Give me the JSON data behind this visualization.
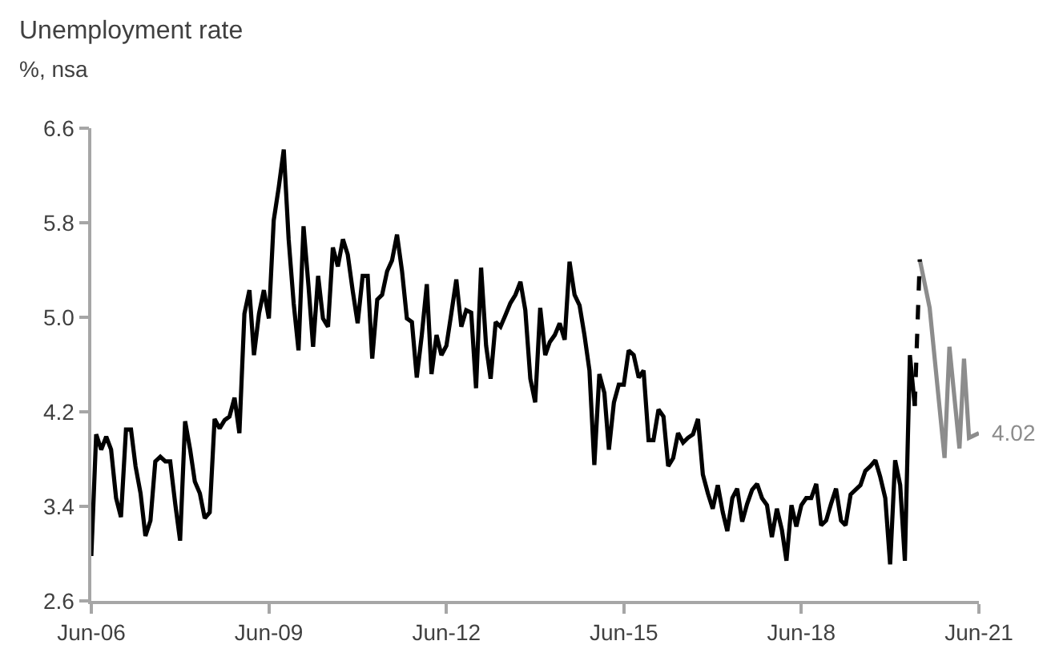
{
  "chart_data": {
    "type": "line",
    "title": "Unemployment rate",
    "subtitle": "%, nsa",
    "xlim": [
      "2006-06",
      "2021-06"
    ],
    "xticks": [
      {
        "value": "2006-06",
        "label": "Jun-06"
      },
      {
        "value": "2009-06",
        "label": "Jun-09"
      },
      {
        "value": "2012-06",
        "label": "Jun-12"
      },
      {
        "value": "2015-06",
        "label": "Jun-15"
      },
      {
        "value": "2018-06",
        "label": "Jun-18"
      },
      {
        "value": "2021-06",
        "label": "Jun-21"
      }
    ],
    "ylim": [
      2.6,
      6.6
    ],
    "yticks": [
      2.6,
      3.4,
      4.2,
      {
        "value": 5.0,
        "label": "5.0"
      },
      5.8,
      6.6
    ],
    "grid": false,
    "marker": "none",
    "annotations": [
      {
        "text": "4.02",
        "x": "2021-06",
        "y": 4.02
      }
    ],
    "series": [
      {
        "color": "#000000",
        "line_style": "solid",
        "x": [
          "2006-06",
          "2006-07",
          "2006-08",
          "2006-09",
          "2006-10",
          "2006-11",
          "2006-12",
          "2007-01",
          "2007-02",
          "2007-03",
          "2007-04",
          "2007-05",
          "2007-06",
          "2007-07",
          "2007-08",
          "2007-09",
          "2007-10",
          "2007-11",
          "2007-12",
          "2008-01",
          "2008-02",
          "2008-03",
          "2008-04",
          "2008-05",
          "2008-06",
          "2008-07",
          "2008-08",
          "2008-09",
          "2008-10",
          "2008-11",
          "2008-12",
          "2009-01",
          "2009-02",
          "2009-03",
          "2009-04",
          "2009-05",
          "2009-06",
          "2009-07",
          "2009-08",
          "2009-09",
          "2009-10",
          "2009-11",
          "2009-12",
          "2010-01",
          "2010-02",
          "2010-03",
          "2010-04",
          "2010-05",
          "2010-06",
          "2010-07",
          "2010-08",
          "2010-09",
          "2010-10",
          "2010-11",
          "2010-12",
          "2011-01",
          "2011-02",
          "2011-03",
          "2011-04",
          "2011-05",
          "2011-06",
          "2011-07",
          "2011-08",
          "2011-09",
          "2011-10",
          "2011-11",
          "2011-12",
          "2012-01",
          "2012-02",
          "2012-03",
          "2012-04",
          "2012-05",
          "2012-06",
          "2012-07",
          "2012-08",
          "2012-09",
          "2012-10",
          "2012-11",
          "2012-12",
          "2013-01",
          "2013-02",
          "2013-03",
          "2013-04",
          "2013-05",
          "2013-06",
          "2013-07",
          "2013-08",
          "2013-09",
          "2013-10",
          "2013-11",
          "2013-12",
          "2014-01",
          "2014-02",
          "2014-03",
          "2014-04",
          "2014-05",
          "2014-06",
          "2014-07",
          "2014-08",
          "2014-09",
          "2014-10",
          "2014-11",
          "2014-12",
          "2015-01",
          "2015-02",
          "2015-03",
          "2015-04",
          "2015-05",
          "2015-06",
          "2015-07",
          "2015-08",
          "2015-09",
          "2015-10",
          "2015-11",
          "2015-12",
          "2016-01",
          "2016-02",
          "2016-03",
          "2016-04",
          "2016-05",
          "2016-06",
          "2016-07",
          "2016-08",
          "2016-09",
          "2016-10",
          "2016-11",
          "2016-12",
          "2017-01",
          "2017-02",
          "2017-03",
          "2017-04",
          "2017-05",
          "2017-06",
          "2017-07",
          "2017-08",
          "2017-09",
          "2017-10",
          "2017-11",
          "2017-12",
          "2018-01",
          "2018-02",
          "2018-03",
          "2018-04",
          "2018-05",
          "2018-06",
          "2018-07",
          "2018-08",
          "2018-09",
          "2018-10",
          "2018-11",
          "2018-12",
          "2019-01",
          "2019-02",
          "2019-03",
          "2019-04",
          "2019-05",
          "2019-06",
          "2019-07",
          "2019-08",
          "2019-09",
          "2019-10",
          "2019-11",
          "2019-12",
          "2020-01",
          "2020-02",
          "2020-03",
          "2020-04",
          "2020-05"
        ],
        "values": [
          2.98,
          4.01,
          3.88,
          3.99,
          3.88,
          3.47,
          3.31,
          4.05,
          4.05,
          3.74,
          3.51,
          3.15,
          3.28,
          3.78,
          3.82,
          3.78,
          3.78,
          3.42,
          3.11,
          4.12,
          3.88,
          3.61,
          3.51,
          3.3,
          3.35,
          4.14,
          4.06,
          4.13,
          4.16,
          4.32,
          4.02,
          5.03,
          5.23,
          4.68,
          5.03,
          5.23,
          4.99,
          5.82,
          6.1,
          6.42,
          5.66,
          5.12,
          4.72,
          5.77,
          5.26,
          4.75,
          5.35,
          4.99,
          4.92,
          5.59,
          5.43,
          5.66,
          5.53,
          5.22,
          4.95,
          5.35,
          5.35,
          4.65,
          5.15,
          5.19,
          5.39,
          5.48,
          5.7,
          5.39,
          4.99,
          4.96,
          4.49,
          4.85,
          5.28,
          4.52,
          4.85,
          4.68,
          4.76,
          5.03,
          5.32,
          4.92,
          5.06,
          5.04,
          4.4,
          5.42,
          4.76,
          4.48,
          4.96,
          4.92,
          5.02,
          5.12,
          5.19,
          5.3,
          5.06,
          4.48,
          4.28,
          5.08,
          4.68,
          4.79,
          4.85,
          4.95,
          4.81,
          5.47,
          5.19,
          5.1,
          4.85,
          4.55,
          3.75,
          4.52,
          4.36,
          3.88,
          4.28,
          4.43,
          4.43,
          4.72,
          4.68,
          4.49,
          4.55,
          3.96,
          3.96,
          4.22,
          4.16,
          3.74,
          3.81,
          4.02,
          3.94,
          3.98,
          4.01,
          4.14,
          3.67,
          3.51,
          3.38,
          3.58,
          3.35,
          3.19,
          3.47,
          3.55,
          3.27,
          3.42,
          3.54,
          3.59,
          3.47,
          3.41,
          3.14,
          3.38,
          3.2,
          2.94,
          3.41,
          3.23,
          3.41,
          3.47,
          3.47,
          3.59,
          3.24,
          3.28,
          3.42,
          3.55,
          3.28,
          3.24,
          3.5,
          3.54,
          3.58,
          3.7,
          3.74,
          3.79,
          3.65,
          3.47,
          2.91,
          3.79,
          3.58,
          2.94,
          4.68,
          4.25
        ]
      },
      {
        "color": "#000000",
        "line_style": "dashed",
        "x": [
          "2020-05",
          "2020-06"
        ],
        "values": [
          4.25,
          5.49
        ]
      },
      {
        "color": "#8c8c8c",
        "line_style": "solid",
        "x": [
          "2020-06",
          "2020-08",
          "2020-11",
          "2020-12",
          "2021-02",
          "2021-03",
          "2021-04",
          "2021-06"
        ],
        "values": [
          5.49,
          5.08,
          3.81,
          4.75,
          3.89,
          4.65,
          3.98,
          4.02
        ]
      }
    ]
  }
}
